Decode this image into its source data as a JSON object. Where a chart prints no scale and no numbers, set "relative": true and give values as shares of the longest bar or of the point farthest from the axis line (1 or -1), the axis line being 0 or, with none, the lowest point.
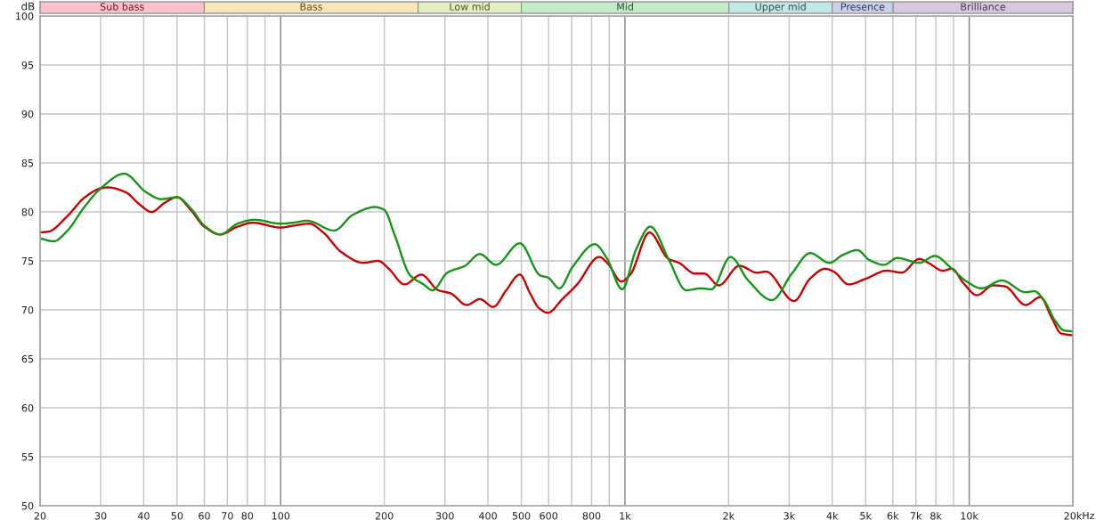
{
  "chart_data": [
    {
      "type": "bar",
      "orientation": "horizontal",
      "stacked": true,
      "relative": true,
      "legend": false,
      "categories": [
        null
      ],
      "series": [
        {
          "name": "Sub bass",
          "color": "#ffc0c8",
          "values": [
            0.159
          ]
        },
        {
          "name": "Bass",
          "color": "#f8e6b8",
          "values": [
            0.207
          ]
        },
        {
          "name": "Low mid",
          "color": "#e0f0c0",
          "values": [
            0.1
          ]
        },
        {
          "name": "Mid",
          "color": "#c0ecc8",
          "values": [
            0.201
          ]
        },
        {
          "name": "Upper mid",
          "color": "#c0e8e4",
          "values": [
            0.1
          ]
        },
        {
          "name": "Presence",
          "color": "#c8d0ec",
          "values": [
            0.059
          ]
        },
        {
          "name": "Brilliance",
          "color": "#d8c8e0",
          "values": [
            0.174
          ]
        }
      ]
    },
    {
      "type": "line",
      "ylabel": "dB",
      "xlabel": "Hz",
      "log": "x",
      "xlim": [
        20,
        20000
      ],
      "ylim": [
        50,
        100
      ],
      "xticks": [
        20,
        30,
        40,
        50,
        60,
        70,
        80,
        {
          "value": 90,
          "label": null
        },
        100,
        200,
        300,
        400,
        500,
        600,
        {
          "value": 700,
          "label": null
        },
        800,
        {
          "value": 900,
          "label": null
        },
        {
          "value": 1000,
          "label": "1k"
        },
        {
          "value": 2000,
          "label": "2k"
        },
        {
          "value": 3000,
          "label": "3k"
        },
        {
          "value": 4000,
          "label": "4k"
        },
        {
          "value": 5000,
          "label": "5k"
        },
        {
          "value": 6000,
          "label": "6k"
        },
        {
          "value": 7000,
          "label": "7k"
        },
        {
          "value": 8000,
          "label": "8k"
        },
        {
          "value": 9000,
          "label": null
        },
        {
          "value": 10000,
          "label": "10k"
        },
        {
          "value": 20000,
          "label": "20k"
        }
      ],
      "yticks": [
        50,
        55,
        60,
        65,
        70,
        75,
        80,
        85,
        90,
        95,
        100
      ],
      "grid": true,
      "legend": false,
      "marker": "none",
      "line_style": "solid",
      "series": [
        {
          "color": "#c80000",
          "x": [
            20,
            21.2,
            23.9,
            27,
            30,
            31.5,
            35.5,
            38.8,
            42.2,
            45.9,
            50,
            54.8,
            60,
            66.7,
            75,
            83,
            100,
            109,
            121,
            133,
            150,
            174,
            192,
            206,
            229,
            256,
            287,
            311,
            347,
            379,
            414,
            452,
            495,
            530,
            562,
            597,
            658,
            726,
            842,
            893,
            976,
            1036,
            1178,
            1338,
            1435,
            1600,
            1700,
            1873,
            2150,
            2421,
            2568,
            3098,
            3451,
            3811,
            4044,
            4463,
            5023,
            5768,
            6365,
            7165,
            7603,
            8388,
            8902,
            9634,
            10530,
            11731,
            12696,
            14580,
            16085,
            17415,
            18476,
            20000
          ],
          "values": [
            77.9,
            78.0,
            79.5,
            81.5,
            82.4,
            82.5,
            82.0,
            80.8,
            80.0,
            80.9,
            81.5,
            80.2,
            78.5,
            77.7,
            78.5,
            78.9,
            78.4,
            78.6,
            78.8,
            77.9,
            75.9,
            74.8,
            75.0,
            74.2,
            72.6,
            73.6,
            72.0,
            71.7,
            70.5,
            71.1,
            70.3,
            72.0,
            73.6,
            71.7,
            70.2,
            69.7,
            71.1,
            72.6,
            75.4,
            74.7,
            72.9,
            73.6,
            77.9,
            75.2,
            74.8,
            73.7,
            73.7,
            72.5,
            74.5,
            73.8,
            73.9,
            70.9,
            73.2,
            74.2,
            73.9,
            72.6,
            73.2,
            74.0,
            73.8,
            75.2,
            74.8,
            74.0,
            74.2,
            72.7,
            71.5,
            72.5,
            72.4,
            70.5,
            71.3,
            69.1,
            67.6,
            67.4
          ]
        },
        {
          "color": "#149614",
          "x": [
            20,
            21.9,
            23.9,
            26.9,
            30,
            35.1,
            40.7,
            45,
            50,
            55,
            60,
            66.7,
            75,
            83.7,
            100,
            109,
            119,
            143,
            162,
            188,
            200,
            214,
            238,
            260,
            276,
            305,
            343,
            379,
            422,
            495,
            568,
            597,
            645,
            705,
            818,
            885,
            982,
            1078,
            1185,
            1338,
            1507,
            1664,
            1783,
            2026,
            2281,
            2671,
            3067,
            3451,
            3926,
            4290,
            4735,
            5123,
            5655,
            6180,
            7165,
            7937,
            8902,
            9824,
            10845,
            12446,
            14580,
            15470,
            16412,
            17760,
            18837,
            20000
          ],
          "values": [
            77.3,
            77.0,
            78.0,
            80.5,
            82.4,
            83.9,
            82.0,
            81.3,
            81.5,
            80.3,
            78.6,
            77.7,
            78.8,
            79.2,
            78.8,
            78.9,
            79.1,
            78.1,
            79.7,
            80.5,
            80.2,
            77.7,
            73.5,
            72.6,
            72.0,
            73.8,
            74.5,
            75.7,
            74.6,
            76.8,
            73.5,
            73.3,
            72.2,
            74.4,
            76.7,
            75.3,
            72.1,
            76.2,
            78.5,
            75.2,
            72.0,
            72.2,
            72.1,
            75.4,
            73.0,
            71.0,
            73.8,
            75.8,
            74.8,
            75.6,
            76.1,
            75.1,
            74.6,
            75.3,
            74.8,
            75.5,
            74.2,
            72.9,
            72.2,
            73.0,
            71.8,
            71.9,
            71.1,
            68.9,
            67.9,
            67.8
          ]
        }
      ]
    }
  ]
}
